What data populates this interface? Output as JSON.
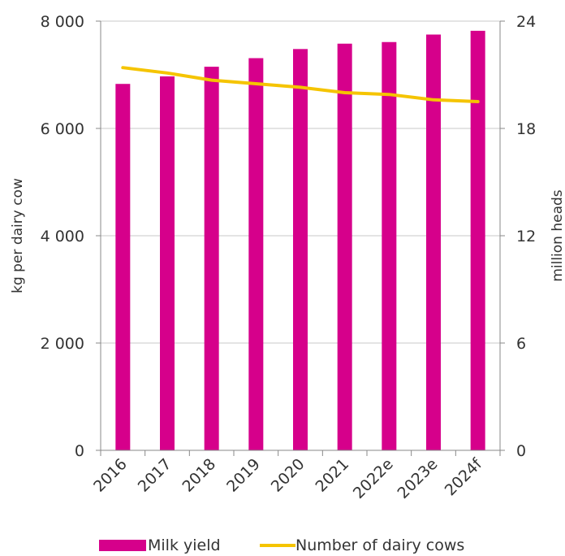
{
  "chart_data": {
    "type": "bar",
    "categories": [
      "2016",
      "2017",
      "2018",
      "2019",
      "2020",
      "2021",
      "2022e",
      "2023e",
      "2024f"
    ],
    "series": [
      {
        "name": "Milk yield",
        "type": "bar",
        "axis": "left",
        "color": "#d6008b",
        "values": [
          6830,
          6970,
          7150,
          7310,
          7480,
          7580,
          7610,
          7750,
          7820
        ]
      },
      {
        "name": "Number of dairy cows",
        "type": "line",
        "axis": "right",
        "color": "#f5c400",
        "values": [
          21.4,
          21.1,
          20.7,
          20.5,
          20.3,
          20.0,
          19.9,
          19.6,
          19.5
        ]
      }
    ],
    "ylabel": "kg per dairy cow",
    "y2label": "million heads",
    "ylim": [
      0,
      8000
    ],
    "y2lim": [
      0,
      24
    ],
    "yticks": [
      "0",
      "2 000",
      "4 000",
      "6 000",
      "8 000"
    ],
    "y2ticks": [
      "0",
      "6",
      "12",
      "18",
      "24"
    ],
    "grid": true,
    "legend_position": "bottom"
  }
}
